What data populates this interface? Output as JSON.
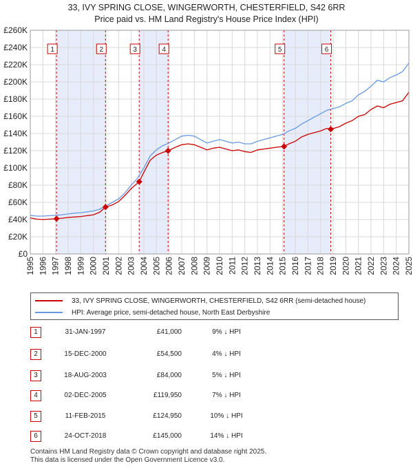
{
  "title": "33, IVY SPRING CLOSE, WINGERWORTH, CHESTERFIELD, S42 6RR",
  "subtitle": "Price paid vs. HM Land Registry's House Price Index (HPI)",
  "colors": {
    "property": "#cc0000",
    "hpi": "#6699dd",
    "shade": "#e6ecfa",
    "grid": "#d8d8d8",
    "marker_box": "#cc0000"
  },
  "chart_data": {
    "type": "line",
    "xlim": [
      1995,
      2025
    ],
    "ylim": [
      0,
      260000
    ],
    "y_ticks": [
      0,
      20000,
      40000,
      60000,
      80000,
      100000,
      120000,
      140000,
      160000,
      180000,
      200000,
      220000,
      240000,
      260000
    ],
    "y_tick_labels": [
      "£0",
      "£20K",
      "£40K",
      "£60K",
      "£80K",
      "£100K",
      "£120K",
      "£140K",
      "£160K",
      "£180K",
      "£200K",
      "£220K",
      "£240K",
      "£260K"
    ],
    "x_ticks": [
      1995,
      1996,
      1997,
      1998,
      1999,
      2000,
      2001,
      2002,
      2003,
      2004,
      2005,
      2006,
      2007,
      2008,
      2009,
      2010,
      2011,
      2012,
      2013,
      2014,
      2015,
      2016,
      2017,
      2018,
      2019,
      2020,
      2021,
      2022,
      2023,
      2024,
      2025
    ],
    "x_tick_labels": [
      "1995",
      "1996",
      "1997",
      "1998",
      "1999",
      "2000",
      "2001",
      "2002",
      "2003",
      "2004",
      "2005",
      "2006",
      "2007",
      "2008",
      "2009",
      "2010",
      "2011",
      "2012",
      "2013",
      "2014",
      "2015",
      "2016",
      "2017",
      "2018",
      "2019",
      "2020",
      "2021",
      "2022",
      "2023",
      "2024",
      "2025"
    ],
    "grid": true,
    "shaded_periods": [
      [
        1997.08,
        2000.96
      ],
      [
        2003.63,
        2005.92
      ],
      [
        2015.11,
        2018.81
      ]
    ],
    "series": [
      {
        "name": "33, IVY SPRING CLOSE, WINGERWORTH, CHESTERFIELD, S42 6RR (semi-detached house)",
        "x": [
          1995.0,
          1995.5,
          1996.0,
          1996.5,
          1997.08,
          1997.5,
          1998.0,
          1998.5,
          1999.0,
          1999.5,
          2000.0,
          2000.5,
          2000.96,
          2001.5,
          2002.0,
          2002.5,
          2003.0,
          2003.63,
          2004.0,
          2004.5,
          2005.0,
          2005.5,
          2005.92,
          2006.5,
          2007.0,
          2007.5,
          2008.0,
          2008.5,
          2009.0,
          2009.5,
          2010.0,
          2010.5,
          2011.0,
          2011.5,
          2012.0,
          2012.5,
          2013.0,
          2013.5,
          2014.0,
          2014.5,
          2015.11,
          2015.5,
          2016.0,
          2016.5,
          2017.0,
          2017.5,
          2018.0,
          2018.5,
          2018.81,
          2019.5,
          2020.0,
          2020.5,
          2021.0,
          2021.5,
          2022.0,
          2022.5,
          2023.0,
          2023.5,
          2024.0,
          2024.5,
          2025.0
        ],
        "values": [
          42000,
          40500,
          40000,
          40500,
          41000,
          41500,
          42500,
          43000,
          43500,
          44500,
          45500,
          48500,
          54500,
          57000,
          61000,
          68000,
          76000,
          84000,
          95000,
          109000,
          115000,
          118000,
          119950,
          124000,
          127000,
          128000,
          127000,
          124000,
          121000,
          123000,
          124000,
          122000,
          120000,
          121000,
          119000,
          118000,
          121000,
          122000,
          123000,
          124000,
          124950,
          128000,
          131000,
          136000,
          139000,
          141000,
          143000,
          146000,
          145000,
          148000,
          152000,
          155000,
          160000,
          162000,
          168000,
          172000,
          170000,
          174000,
          176000,
          178000,
          188000
        ]
      },
      {
        "name": "HPI: Average price, semi-detached house, North East Derbyshire",
        "x": [
          1995.0,
          1995.5,
          1996.0,
          1996.5,
          1997.0,
          1997.5,
          1998.0,
          1998.5,
          1999.0,
          1999.5,
          2000.0,
          2000.5,
          2001.0,
          2001.5,
          2002.0,
          2002.5,
          2003.0,
          2003.5,
          2004.0,
          2004.5,
          2005.0,
          2005.5,
          2006.0,
          2006.5,
          2007.0,
          2007.5,
          2008.0,
          2008.5,
          2009.0,
          2009.5,
          2010.0,
          2010.5,
          2011.0,
          2011.5,
          2012.0,
          2012.5,
          2013.0,
          2013.5,
          2014.0,
          2014.5,
          2015.0,
          2015.5,
          2016.0,
          2016.5,
          2017.0,
          2017.5,
          2018.0,
          2018.5,
          2019.0,
          2019.5,
          2020.0,
          2020.5,
          2021.0,
          2021.5,
          2022.0,
          2022.5,
          2023.0,
          2023.5,
          2024.0,
          2024.5,
          2025.0
        ],
        "values": [
          45000,
          44000,
          44000,
          44500,
          45000,
          45500,
          46500,
          47500,
          48000,
          49000,
          50000,
          52000,
          56000,
          60000,
          64000,
          71000,
          80000,
          88000,
          100000,
          114000,
          121000,
          126000,
          129000,
          133000,
          137000,
          138000,
          137000,
          133000,
          129000,
          131000,
          133000,
          131000,
          129000,
          130000,
          128000,
          128000,
          131000,
          133000,
          135000,
          137000,
          139000,
          143000,
          146000,
          151000,
          155000,
          159000,
          163000,
          167000,
          169000,
          171000,
          175000,
          178000,
          185000,
          189000,
          195000,
          202000,
          200000,
          205000,
          208000,
          212000,
          222000
        ]
      }
    ],
    "sale_points": [
      {
        "label": "1",
        "x": 1997.08,
        "y": 41000
      },
      {
        "label": "2",
        "x": 2000.96,
        "y": 54500
      },
      {
        "label": "3",
        "x": 2003.63,
        "y": 84000
      },
      {
        "label": "4",
        "x": 2005.92,
        "y": 119950
      },
      {
        "label": "5",
        "x": 2015.11,
        "y": 124950
      },
      {
        "label": "6",
        "x": 2018.81,
        "y": 145000
      }
    ]
  },
  "legend": {
    "property_label": "33, IVY SPRING CLOSE, WINGERWORTH, CHESTERFIELD, S42 6RR (semi-detached house)",
    "hpi_label": "HPI: Average price, semi-detached house, North East Derbyshire"
  },
  "transactions": [
    {
      "num": "1",
      "date": "31-JAN-1997",
      "price": "£41,000",
      "hpi": "9% ↓ HPI"
    },
    {
      "num": "2",
      "date": "15-DEC-2000",
      "price": "£54,500",
      "hpi": "4% ↓ HPI"
    },
    {
      "num": "3",
      "date": "18-AUG-2003",
      "price": "£84,000",
      "hpi": "5% ↓ HPI"
    },
    {
      "num": "4",
      "date": "02-DEC-2005",
      "price": "£119,950",
      "hpi": "7% ↓ HPI"
    },
    {
      "num": "5",
      "date": "11-FEB-2015",
      "price": "£124,950",
      "hpi": "10% ↓ HPI"
    },
    {
      "num": "6",
      "date": "24-OCT-2018",
      "price": "£145,000",
      "hpi": "14% ↓ HPI"
    }
  ],
  "footer": {
    "line1": "Contains HM Land Registry data © Crown copyright and database right 2025.",
    "line2": "This data is licensed under the Open Government Licence v3.0."
  }
}
